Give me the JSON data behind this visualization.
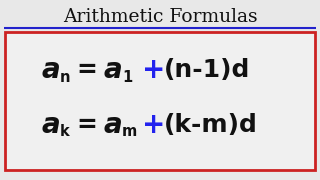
{
  "title": "Arithmetic Formulas",
  "title_color": "#111111",
  "title_underline_color": "#2222cc",
  "background_color": "#e8e8e8",
  "box_edge_color": "#cc2222",
  "box_face_color": "#f0f0f0",
  "blue_color": "#2222ee",
  "black_color": "#111111",
  "formula1": {
    "left_var": "a",
    "left_sub": "n",
    "right_var": "a",
    "right_sub": "1",
    "right_expr": "(n-1)d"
  },
  "formula2": {
    "left_var": "a",
    "left_sub": "k",
    "right_var": "a",
    "right_sub": "m",
    "right_expr": "(k-m)d"
  },
  "title_fontsize": 13.5,
  "formula_fontsize": 16,
  "sub_fontsize": 10.5,
  "figsize": [
    3.2,
    1.8
  ],
  "dpi": 100
}
